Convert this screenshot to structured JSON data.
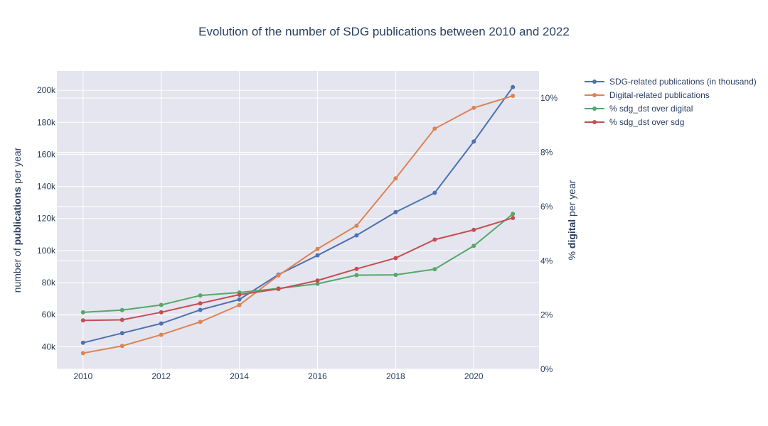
{
  "chart_data": {
    "type": "line",
    "title": "Evolution of the number of SDG publications between 2010 and 2022",
    "x": [
      2010,
      2011,
      2012,
      2013,
      2014,
      2015,
      2016,
      2017,
      2018,
      2019,
      2020,
      2021
    ],
    "x_ticks": [
      "2010",
      "2012",
      "2014",
      "2016",
      "2018",
      "2020"
    ],
    "y_left": {
      "title_prefix": "number of ",
      "title_bold": "publications",
      "title_suffix": " per year",
      "ylim": [
        26000,
        212000
      ],
      "ticks": [
        40000,
        60000,
        80000,
        100000,
        120000,
        140000,
        160000,
        180000,
        200000
      ],
      "tick_labels": [
        "40k",
        "60k",
        "80k",
        "100k",
        "120k",
        "140k",
        "160k",
        "180k",
        "200k"
      ]
    },
    "y_right": {
      "title_prefix": "% ",
      "title_bold": "digital",
      "title_suffix": " per year",
      "ylim": [
        0,
        11
      ],
      "ticks": [
        0,
        2,
        4,
        6,
        8,
        10
      ],
      "tick_labels": [
        "0%",
        "2%",
        "4%",
        "6%",
        "8%",
        "10%"
      ]
    },
    "series": [
      {
        "name": "SDG-related publications (in thousand)",
        "axis": "left",
        "color": "#4c72b0",
        "values": [
          42500,
          48500,
          54500,
          63000,
          69500,
          85000,
          97000,
          109500,
          124000,
          136000,
          168000,
          202000
        ]
      },
      {
        "name": "Digital-related publications",
        "axis": "left",
        "color": "#dd8452",
        "values": [
          36000,
          40500,
          47500,
          55500,
          66000,
          84500,
          101000,
          115500,
          145000,
          176000,
          189000,
          196500
        ]
      },
      {
        "name": "% sdg_dst over digital",
        "axis": "right",
        "color": "#55a868",
        "values": [
          2.1,
          2.18,
          2.37,
          2.72,
          2.83,
          2.98,
          3.15,
          3.47,
          3.48,
          3.69,
          4.55,
          5.73
        ]
      },
      {
        "name": "% sdg_dst over sdg",
        "axis": "right",
        "color": "#c44e52",
        "values": [
          1.8,
          1.82,
          2.1,
          2.43,
          2.75,
          2.96,
          3.27,
          3.7,
          4.1,
          4.78,
          5.14,
          5.58
        ]
      }
    ],
    "grid": true,
    "legend_position": "right"
  }
}
